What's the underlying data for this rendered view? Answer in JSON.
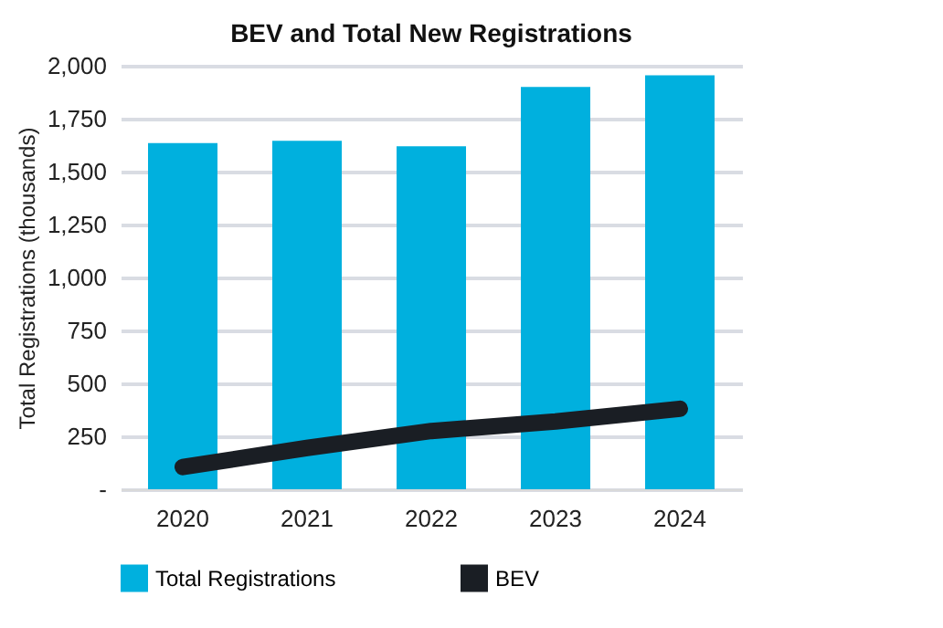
{
  "chart_data": {
    "type": "bar",
    "title": "BEV and Total New Registrations",
    "ylabel": "Total Registrations (thousands)",
    "categories": [
      "2020",
      "2021",
      "2022",
      "2023",
      "2024"
    ],
    "series": [
      {
        "name": "Total Registrations",
        "color": "#00b0de",
        "values": [
          1635,
          1645,
          1620,
          1900,
          1955
        ]
      },
      {
        "name": "BEV",
        "color": "#1a1e24",
        "type": "line",
        "values": [
          105,
          195,
          275,
          320,
          380
        ]
      }
    ],
    "ylim": [
      0,
      2000
    ],
    "yticks": [
      {
        "value": 0,
        "label": "-"
      },
      250,
      500,
      750,
      {
        "value": 1000,
        "label": "1,000"
      },
      {
        "value": 1250,
        "label": "1,250"
      },
      {
        "value": 1500,
        "label": "1,500"
      },
      {
        "value": 1750,
        "label": "1,750"
      },
      {
        "value": 2000,
        "label": "2,000"
      }
    ],
    "grid": "y",
    "legend": "bottom",
    "line_style": "solid"
  }
}
